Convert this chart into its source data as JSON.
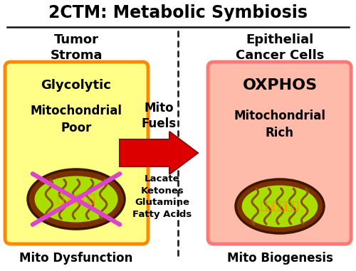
{
  "title": "2CTM: Metabolic Symbiosis",
  "title_fontsize": 17,
  "bg_color": "#ffffff",
  "left_box": {
    "label_top": "Tumor\nStroma",
    "label_bottom": "Mito Dysfunction",
    "box_fill": "#ffff88",
    "box_edge": "#ff8800",
    "text1": "Glycolytic",
    "text2": "Mitochondrial\nPoor"
  },
  "right_box": {
    "label_top": "Epithelial\nCancer Cells",
    "label_bottom": "Mito Biogenesis",
    "box_fill": "#ffbbaa",
    "box_edge": "#ff7777",
    "text1": "OXPHOS",
    "text2": "Mitochondrial\nRich"
  },
  "arrow": {
    "color": "#dd0000",
    "edge_color": "#990000",
    "label_top": "Mito\nFuels",
    "label_bottom": "Lacate\nKetones\nGlutamine\nFatty Acids"
  },
  "dashed_line_color": "#222222",
  "line_color": "#111111"
}
